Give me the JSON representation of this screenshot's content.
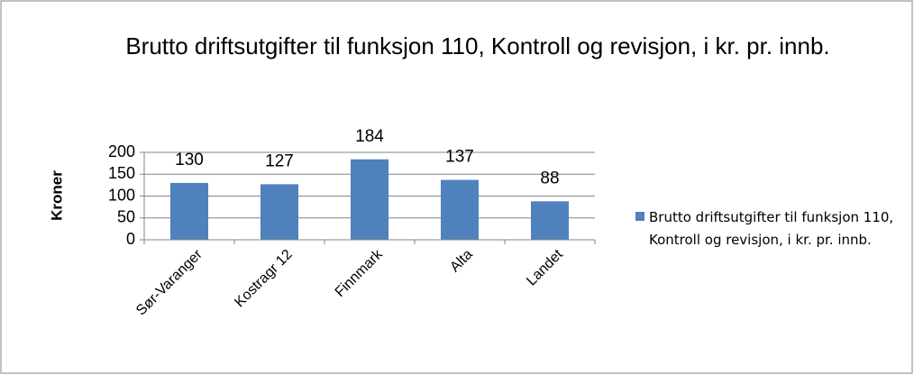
{
  "chart_data": {
    "type": "bar",
    "title": "Brutto driftsutgifter til funksjon 110, Kontroll og revisjon, i kr. pr. innb.",
    "y_label": "Kroner",
    "categories": [
      "Sør-Varanger",
      "Kostragr 12",
      "Finnmark",
      "Alta",
      "Landet"
    ],
    "series": [
      {
        "name": "Brutto driftsutgifter til funksjon 110, Kontroll og revisjon, i kr. pr. innb.",
        "color": "#4f81bd",
        "values": [
          130,
          127,
          184,
          137,
          88
        ]
      }
    ],
    "ylim": [
      0,
      200
    ],
    "yticks": [
      0,
      50,
      100,
      150,
      200
    ],
    "grid": true,
    "legend": "right"
  }
}
